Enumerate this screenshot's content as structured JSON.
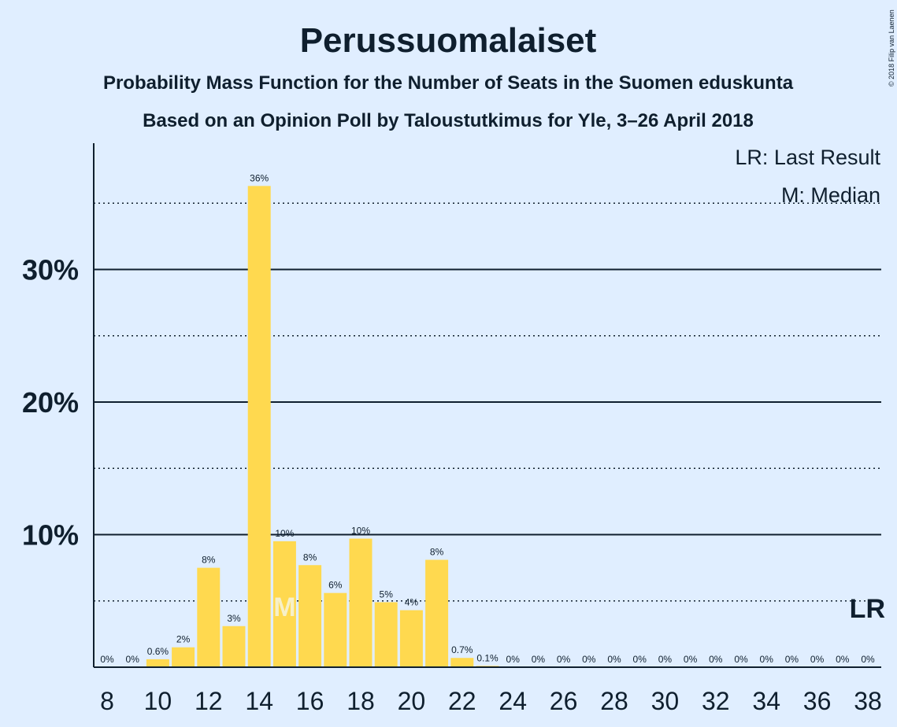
{
  "title": "Perussuomalaiset",
  "subtitle1": "Probability Mass Function for the Number of Seats in the Suomen eduskunta",
  "subtitle2": "Based on an Opinion Poll by Taloustutkimus for Yle, 3–26 April 2018",
  "copyright": "© 2018 Filip van Laenen",
  "legend": {
    "last_result": "LR: Last Result",
    "median": "M: Median"
  },
  "markers": {
    "last_result_label": "LR",
    "last_result_seat": 38,
    "median_label": "M",
    "median_seat": 15
  },
  "colors": {
    "background": "#e0eeff",
    "bar": "#ffd94f",
    "text": "#0f1f2e"
  },
  "chart_data": {
    "type": "bar",
    "x": [
      8,
      9,
      10,
      11,
      12,
      13,
      14,
      15,
      16,
      17,
      18,
      19,
      20,
      21,
      22,
      23,
      24,
      25,
      26,
      27,
      28,
      29,
      30,
      31,
      32,
      33,
      34,
      35,
      36,
      37,
      38
    ],
    "values": [
      0,
      0,
      0.6,
      1.5,
      7.5,
      3.1,
      36.3,
      9.5,
      7.7,
      5.6,
      9.7,
      4.9,
      4.3,
      8.1,
      0.7,
      0.1,
      0,
      0,
      0,
      0,
      0,
      0,
      0,
      0,
      0,
      0,
      0,
      0,
      0,
      0,
      0
    ],
    "labels": [
      "0%",
      "0%",
      "0.6%",
      "2%",
      "8%",
      "3%",
      "36%",
      "10%",
      "8%",
      "6%",
      "10%",
      "5%",
      "4%",
      "8%",
      "0.7%",
      "0.1%",
      "0%",
      "0%",
      "0%",
      "0%",
      "0%",
      "0%",
      "0%",
      "0%",
      "0%",
      "0%",
      "0%",
      "0%",
      "0%",
      "0%",
      "0%"
    ],
    "xticks": [
      "8",
      "10",
      "12",
      "14",
      "16",
      "18",
      "20",
      "22",
      "24",
      "26",
      "28",
      "30",
      "32",
      "34",
      "36",
      "38"
    ],
    "yticks": [
      "10%",
      "20%",
      "30%"
    ],
    "ytick_values": [
      10,
      20,
      30
    ],
    "minor_gridlines": [
      5,
      15,
      25,
      35
    ],
    "ylim": [
      0,
      39.5
    ],
    "xlabel": "",
    "ylabel": ""
  }
}
